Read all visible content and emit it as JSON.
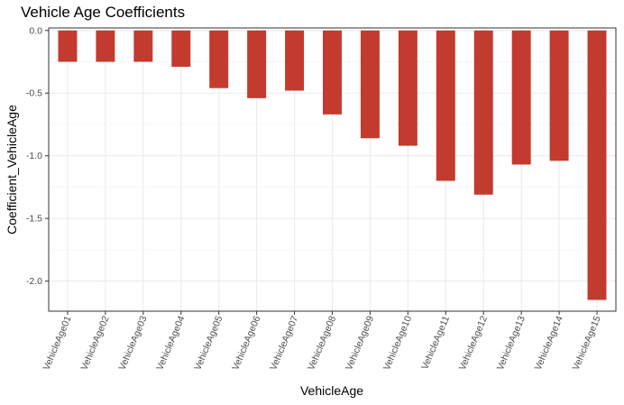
{
  "chart_data": {
    "type": "bar",
    "title": "Vehicle Age Coefficients",
    "xlabel": "VehicleAge",
    "ylabel": "Coefficient_VehicleAge",
    "categories": [
      "VehicleAge01",
      "VehicleAge02",
      "VehicleAge03",
      "VehicleAge04",
      "VehicleAge05",
      "VehicleAge06",
      "VehicleAge07",
      "VehicleAge08",
      "VehicleAge09",
      "VehicleAge10",
      "VehicleAge11",
      "VehicleAge12",
      "VehicleAge13",
      "VehicleAge14",
      "VehicleAge15"
    ],
    "values": [
      -0.25,
      -0.25,
      -0.25,
      -0.29,
      -0.46,
      -0.54,
      -0.48,
      -0.67,
      -0.86,
      -0.92,
      -1.2,
      -1.31,
      -1.07,
      -1.04,
      -2.15
    ],
    "ylim": [
      -2.24,
      0.02
    ],
    "yticks": [
      0.0,
      -0.5,
      -1.0,
      -1.5,
      -2.0
    ],
    "ytick_labels": [
      "0.0",
      "-0.5",
      "-1.0",
      "-1.5",
      "-2.0"
    ],
    "grid": true,
    "legend": "none",
    "bar_color": "#c23b2e"
  }
}
